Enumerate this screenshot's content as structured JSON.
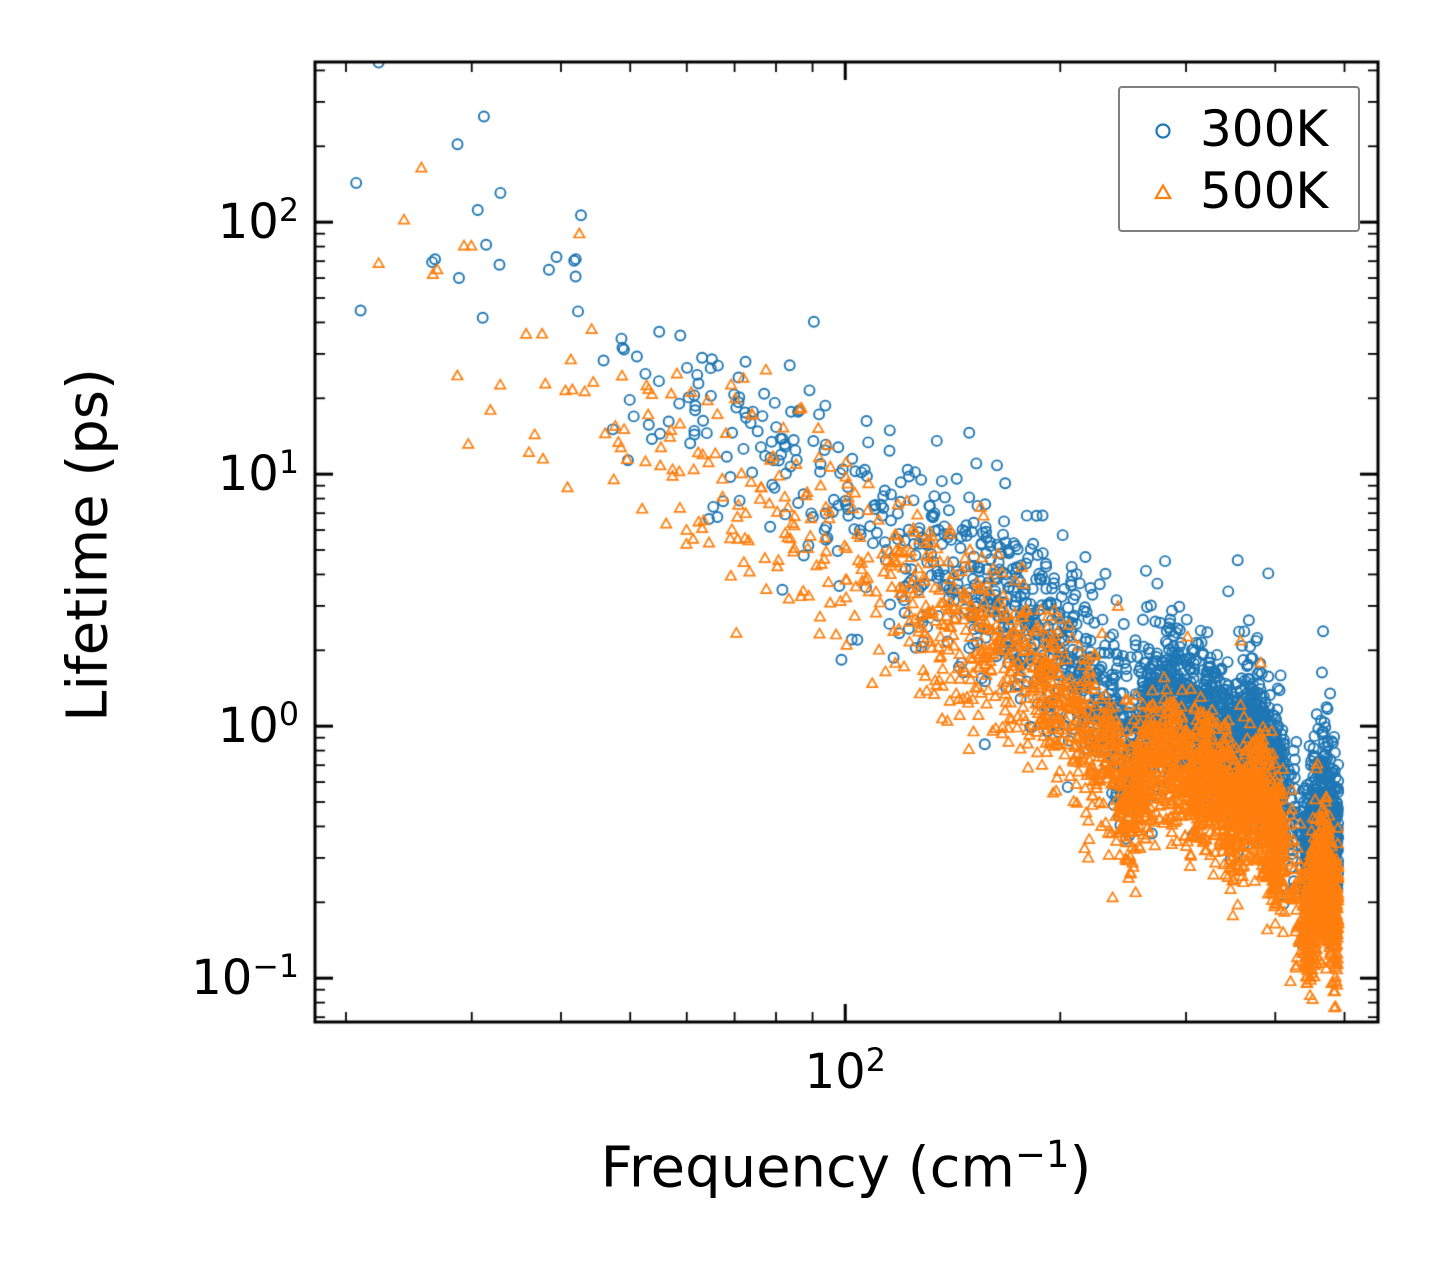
{
  "figure": {
    "background": "#ffffff",
    "axis_color": "#000000"
  },
  "chart_data": {
    "type": "scatter",
    "title": "",
    "xlabel": "Frequency (cm⁻¹)",
    "xlabel_parts": {
      "pre": "Frequency (cm",
      "sup": "−1",
      "post": ")"
    },
    "ylabel": "Lifetime (ps)",
    "x_scale": "log",
    "y_scale": "log",
    "xlim": [
      18.1,
      557
    ],
    "ylim": [
      0.067,
      432
    ],
    "x_major_ticks": [
      100
    ],
    "y_major_ticks": [
      100,
      10,
      1,
      0.1
    ],
    "grid": false,
    "legend": {
      "position": "upper right",
      "frame": true
    },
    "series": [
      {
        "name": "300K",
        "marker": "circle",
        "color": "#1f77b4",
        "n_points": 3000,
        "seed": 12345,
        "freq_range_cm1": [
          19.5,
          490
        ],
        "scatter_dex_low_freq": 0.27,
        "scatter_dex_high_freq": 0.14,
        "outlier_fraction": 0.02,
        "outlier_extra_dex": 0.55,
        "sparse_bands": [
          {
            "range": [
              412,
              440
            ],
            "keep_fraction": 0.18
          }
        ],
        "trend_median_ps": [
          [
            20,
            170
          ],
          [
            26,
            120
          ],
          [
            33,
            70
          ],
          [
            40,
            48
          ],
          [
            50,
            30
          ],
          [
            60,
            21
          ],
          [
            70,
            16
          ],
          [
            80,
            12
          ],
          [
            90,
            9.5
          ],
          [
            100,
            7.5
          ],
          [
            115,
            6.2
          ],
          [
            130,
            5.0
          ],
          [
            150,
            3.8
          ],
          [
            170,
            3.0
          ],
          [
            190,
            2.3
          ],
          [
            210,
            1.8
          ],
          [
            228,
            1.35
          ],
          [
            240,
            1.0
          ],
          [
            250,
            0.8
          ],
          [
            258,
            0.95
          ],
          [
            268,
            1.25
          ],
          [
            280,
            1.35
          ],
          [
            295,
            1.2
          ],
          [
            310,
            1.0
          ],
          [
            322,
            1.15
          ],
          [
            335,
            0.95
          ],
          [
            348,
            0.7
          ],
          [
            360,
            0.85
          ],
          [
            372,
            0.95
          ],
          [
            385,
            0.8
          ],
          [
            398,
            0.65
          ],
          [
            408,
            0.55
          ],
          [
            445,
            0.3
          ],
          [
            456,
            0.45
          ],
          [
            468,
            0.5
          ],
          [
            478,
            0.38
          ],
          [
            486,
            0.3
          ],
          [
            490,
            0.42
          ]
        ]
      },
      {
        "name": "500K",
        "marker": "triangle",
        "color": "#ff7f0e",
        "n_points": 3300,
        "seed": 67890,
        "freq_range_cm1": [
          19.5,
          490
        ],
        "scatter_dex_low_freq": 0.25,
        "scatter_dex_high_freq": 0.13,
        "outlier_fraction": 0.015,
        "outlier_extra_dex": 0.5,
        "sparse_bands": [
          {
            "range": [
              412,
              440
            ],
            "keep_fraction": 0.18
          }
        ],
        "trend_median_ps": [
          [
            20,
            90
          ],
          [
            26,
            62
          ],
          [
            33,
            38
          ],
          [
            40,
            26
          ],
          [
            50,
            16
          ],
          [
            60,
            11.5
          ],
          [
            70,
            8.8
          ],
          [
            80,
            6.8
          ],
          [
            90,
            5.4
          ],
          [
            100,
            4.4
          ],
          [
            115,
            3.6
          ],
          [
            130,
            2.9
          ],
          [
            150,
            2.2
          ],
          [
            170,
            1.75
          ],
          [
            190,
            1.35
          ],
          [
            210,
            1.05
          ],
          [
            228,
            0.8
          ],
          [
            240,
            0.6
          ],
          [
            250,
            0.48
          ],
          [
            258,
            0.56
          ],
          [
            268,
            0.72
          ],
          [
            280,
            0.78
          ],
          [
            295,
            0.68
          ],
          [
            310,
            0.58
          ],
          [
            322,
            0.65
          ],
          [
            335,
            0.55
          ],
          [
            348,
            0.42
          ],
          [
            360,
            0.5
          ],
          [
            372,
            0.55
          ],
          [
            385,
            0.46
          ],
          [
            398,
            0.38
          ],
          [
            408,
            0.32
          ],
          [
            445,
            0.16
          ],
          [
            456,
            0.22
          ],
          [
            468,
            0.27
          ],
          [
            478,
            0.2
          ],
          [
            486,
            0.15
          ],
          [
            490,
            0.2
          ]
        ]
      }
    ]
  }
}
